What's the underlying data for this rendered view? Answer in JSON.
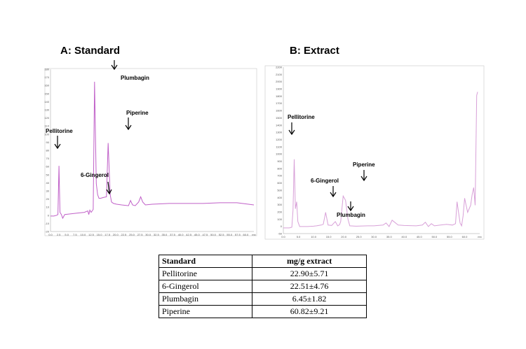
{
  "panels": {
    "a_title": "A: Standard",
    "b_title": "B: Extract"
  },
  "chart_data": [
    {
      "type": "line",
      "title": "A: Standard",
      "color": "#c060c8",
      "xlim": [
        0,
        60
      ],
      "ylim": [
        -20,
        200
      ],
      "x_ticks": [
        "0.0",
        "2.5",
        "5.0",
        "7.5",
        "10.0",
        "12.5",
        "15.0",
        "17.5",
        "20.0",
        "22.5",
        "25.0",
        "27.5",
        "30.0",
        "32.5",
        "35.0",
        "37.5",
        "40.0",
        "42.5",
        "45.0",
        "47.5",
        "50.0",
        "52.5",
        "55.0",
        "57.5",
        "60.0",
        "mn"
      ],
      "y_ticks": [
        "-20",
        "-10",
        "0",
        "10",
        "20",
        "30",
        "40",
        "50",
        "60",
        "70",
        "80",
        "90",
        "100",
        "110",
        "120",
        "130",
        "140",
        "150",
        "160",
        "170",
        "180"
      ],
      "x": [
        0,
        1,
        1.8,
        2.2,
        2.5,
        2.8,
        3.2,
        3.6,
        4.2,
        6,
        8,
        10,
        11,
        11.3,
        11.6,
        12,
        12.6,
        13,
        13.5,
        13.9,
        14.3,
        14.8,
        15.5,
        16.5,
        17,
        17.6,
        18,
        18.6,
        19.5,
        21,
        23,
        23.6,
        24.2,
        25,
        26,
        26.6,
        27.2,
        28,
        30,
        35,
        40,
        45,
        50,
        55,
        60
      ],
      "y": [
        1,
        1,
        2,
        3,
        69,
        6,
        3,
        -2,
        3,
        4,
        5,
        6,
        8,
        3,
        9,
        6,
        10,
        183,
        45,
        30,
        25,
        25,
        26,
        27,
        100,
        30,
        20,
        18,
        17,
        16,
        15,
        22,
        16,
        15,
        20,
        27,
        20,
        16,
        17,
        18,
        18,
        18,
        19,
        19,
        16
      ],
      "annotations": [
        "Pellitorine",
        "6-Gingerol",
        "Plumbagin",
        "Piperine"
      ]
    },
    {
      "type": "line",
      "title": "B: Extract",
      "color": "#d8a0d8",
      "xlim": [
        0,
        65
      ],
      "ylim": [
        -50,
        2300
      ],
      "x_ticks": [
        "0.0",
        "5.0",
        "10.0",
        "15.0",
        "20.0",
        "25.0",
        "30.0",
        "35.0",
        "40.0",
        "45.0",
        "50.0",
        "55.0",
        "60.0",
        "mn"
      ],
      "y_ticks": [
        "-50",
        "0",
        "100",
        "200",
        "300",
        "400",
        "500",
        "600",
        "700",
        "800",
        "900",
        "1000",
        "1100",
        "1200",
        "1300",
        "1400",
        "1500",
        "1600",
        "1700",
        "1800",
        "1900",
        "2000",
        "2100",
        "2200"
      ],
      "x": [
        0,
        2,
        2.8,
        3.2,
        3.6,
        4,
        4.4,
        4.8,
        5.4,
        8,
        10,
        11,
        12.5,
        13.2,
        14,
        14.8,
        16,
        17.2,
        18,
        18.6,
        19,
        19.8,
        20.6,
        21.4,
        22,
        24,
        28,
        30,
        33,
        34,
        35,
        36,
        38,
        40,
        44,
        46,
        47,
        48,
        49,
        50,
        52,
        54,
        56,
        57,
        57.5,
        58,
        58.5,
        59,
        59.5,
        60,
        60.5,
        61,
        62,
        62.5,
        63,
        63.5,
        64,
        64.3
      ],
      "y": [
        30,
        30,
        40,
        280,
        1000,
        300,
        400,
        120,
        50,
        50,
        55,
        60,
        70,
        80,
        250,
        70,
        65,
        120,
        60,
        75,
        120,
        480,
        420,
        150,
        60,
        55,
        60,
        60,
        70,
        100,
        50,
        140,
        70,
        65,
        60,
        70,
        110,
        50,
        90,
        60,
        70,
        80,
        70,
        90,
        400,
        250,
        100,
        60,
        200,
        450,
        350,
        250,
        350,
        500,
        600,
        350,
        1900,
        1950
      ]
    }
  ],
  "peak_labels": {
    "pellitorine": "Pellitorine",
    "gingerol": "6-Gingerol",
    "plumbagin": "Plumbagin",
    "piperine": "Piperine"
  },
  "table": {
    "headers": [
      "Standard",
      "mg/g extract"
    ],
    "rows": [
      [
        "Pellitorine",
        "22.90±5.71"
      ],
      [
        "6-Gingerol",
        "22.51±4.76"
      ],
      [
        "Plumbagin",
        "6.45±1.82"
      ],
      [
        "Piperine",
        "60.82±9.21"
      ]
    ]
  }
}
